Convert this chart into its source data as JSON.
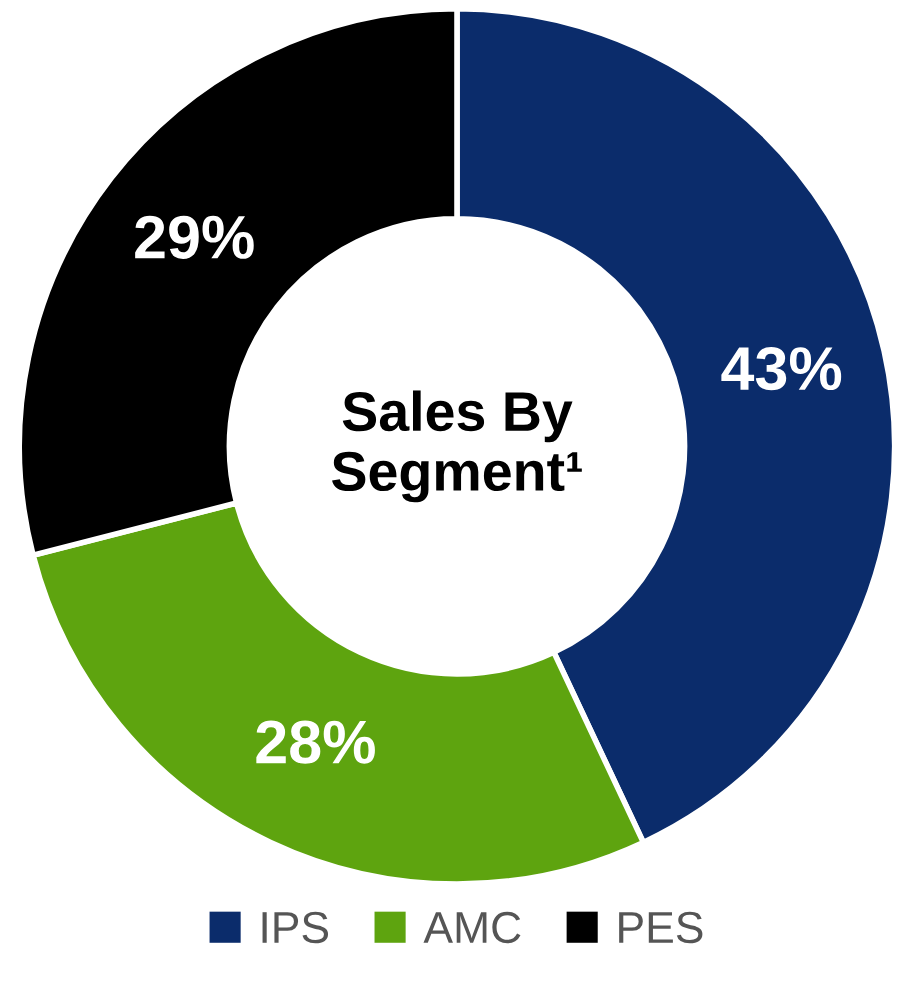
{
  "chart_data": {
    "type": "donut",
    "title": "Sales By\nSegment¹",
    "categories": [
      "IPS",
      "AMC",
      "PES"
    ],
    "values": [
      43,
      28,
      29
    ],
    "colors": [
      "#0b2c6b",
      "#5ea40f",
      "#000000"
    ],
    "value_labels": [
      "43%",
      "28%",
      "29%"
    ],
    "legend": "bottom"
  }
}
